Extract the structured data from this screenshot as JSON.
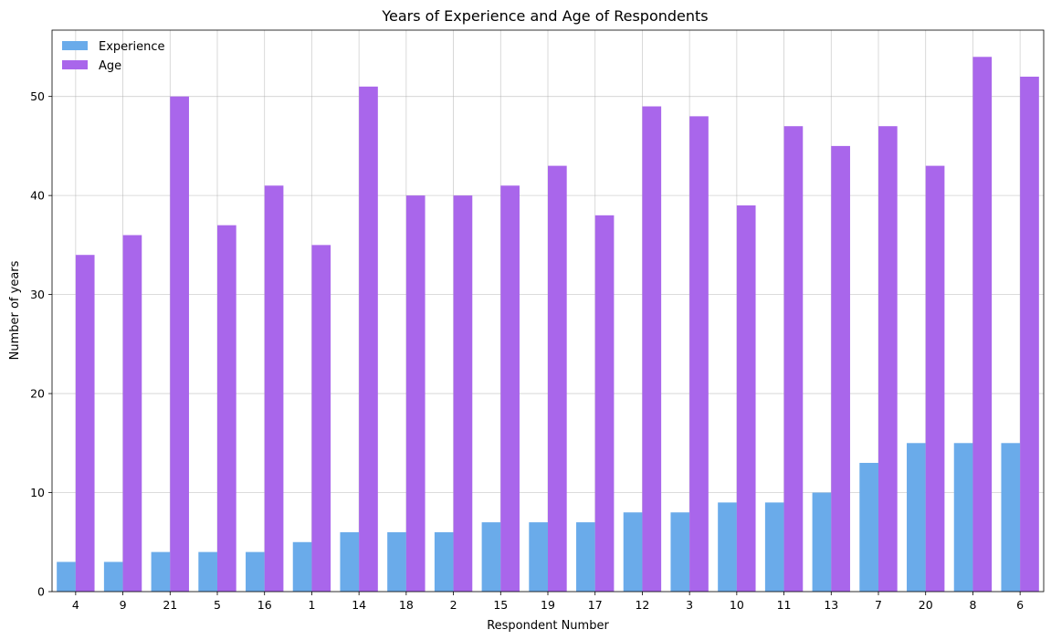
{
  "chart_data": {
    "type": "bar",
    "title": "Years of Experience and Age of Respondents",
    "xlabel": "Respondent Number",
    "ylabel": "Number of years",
    "categories": [
      "4",
      "9",
      "21",
      "5",
      "16",
      "1",
      "14",
      "18",
      "2",
      "15",
      "19",
      "17",
      "12",
      "3",
      "10",
      "11",
      "13",
      "7",
      "20",
      "8",
      "6"
    ],
    "series": [
      {
        "name": "Experience",
        "color": "#6aabea",
        "values": [
          3,
          3,
          4,
          4,
          4,
          5,
          6,
          6,
          6,
          7,
          7,
          7,
          8,
          8,
          9,
          9,
          10,
          13,
          15,
          15,
          15
        ]
      },
      {
        "name": "Age",
        "color": "#a966eb",
        "values": [
          34,
          36,
          50,
          37,
          41,
          35,
          51,
          40,
          40,
          41,
          43,
          38,
          49,
          48,
          39,
          47,
          45,
          47,
          43,
          54,
          52
        ]
      }
    ],
    "ylim": [
      0,
      56.7
    ],
    "yticks": [
      0,
      10,
      20,
      30,
      40,
      50
    ],
    "grid": true,
    "legend": "top-left"
  }
}
